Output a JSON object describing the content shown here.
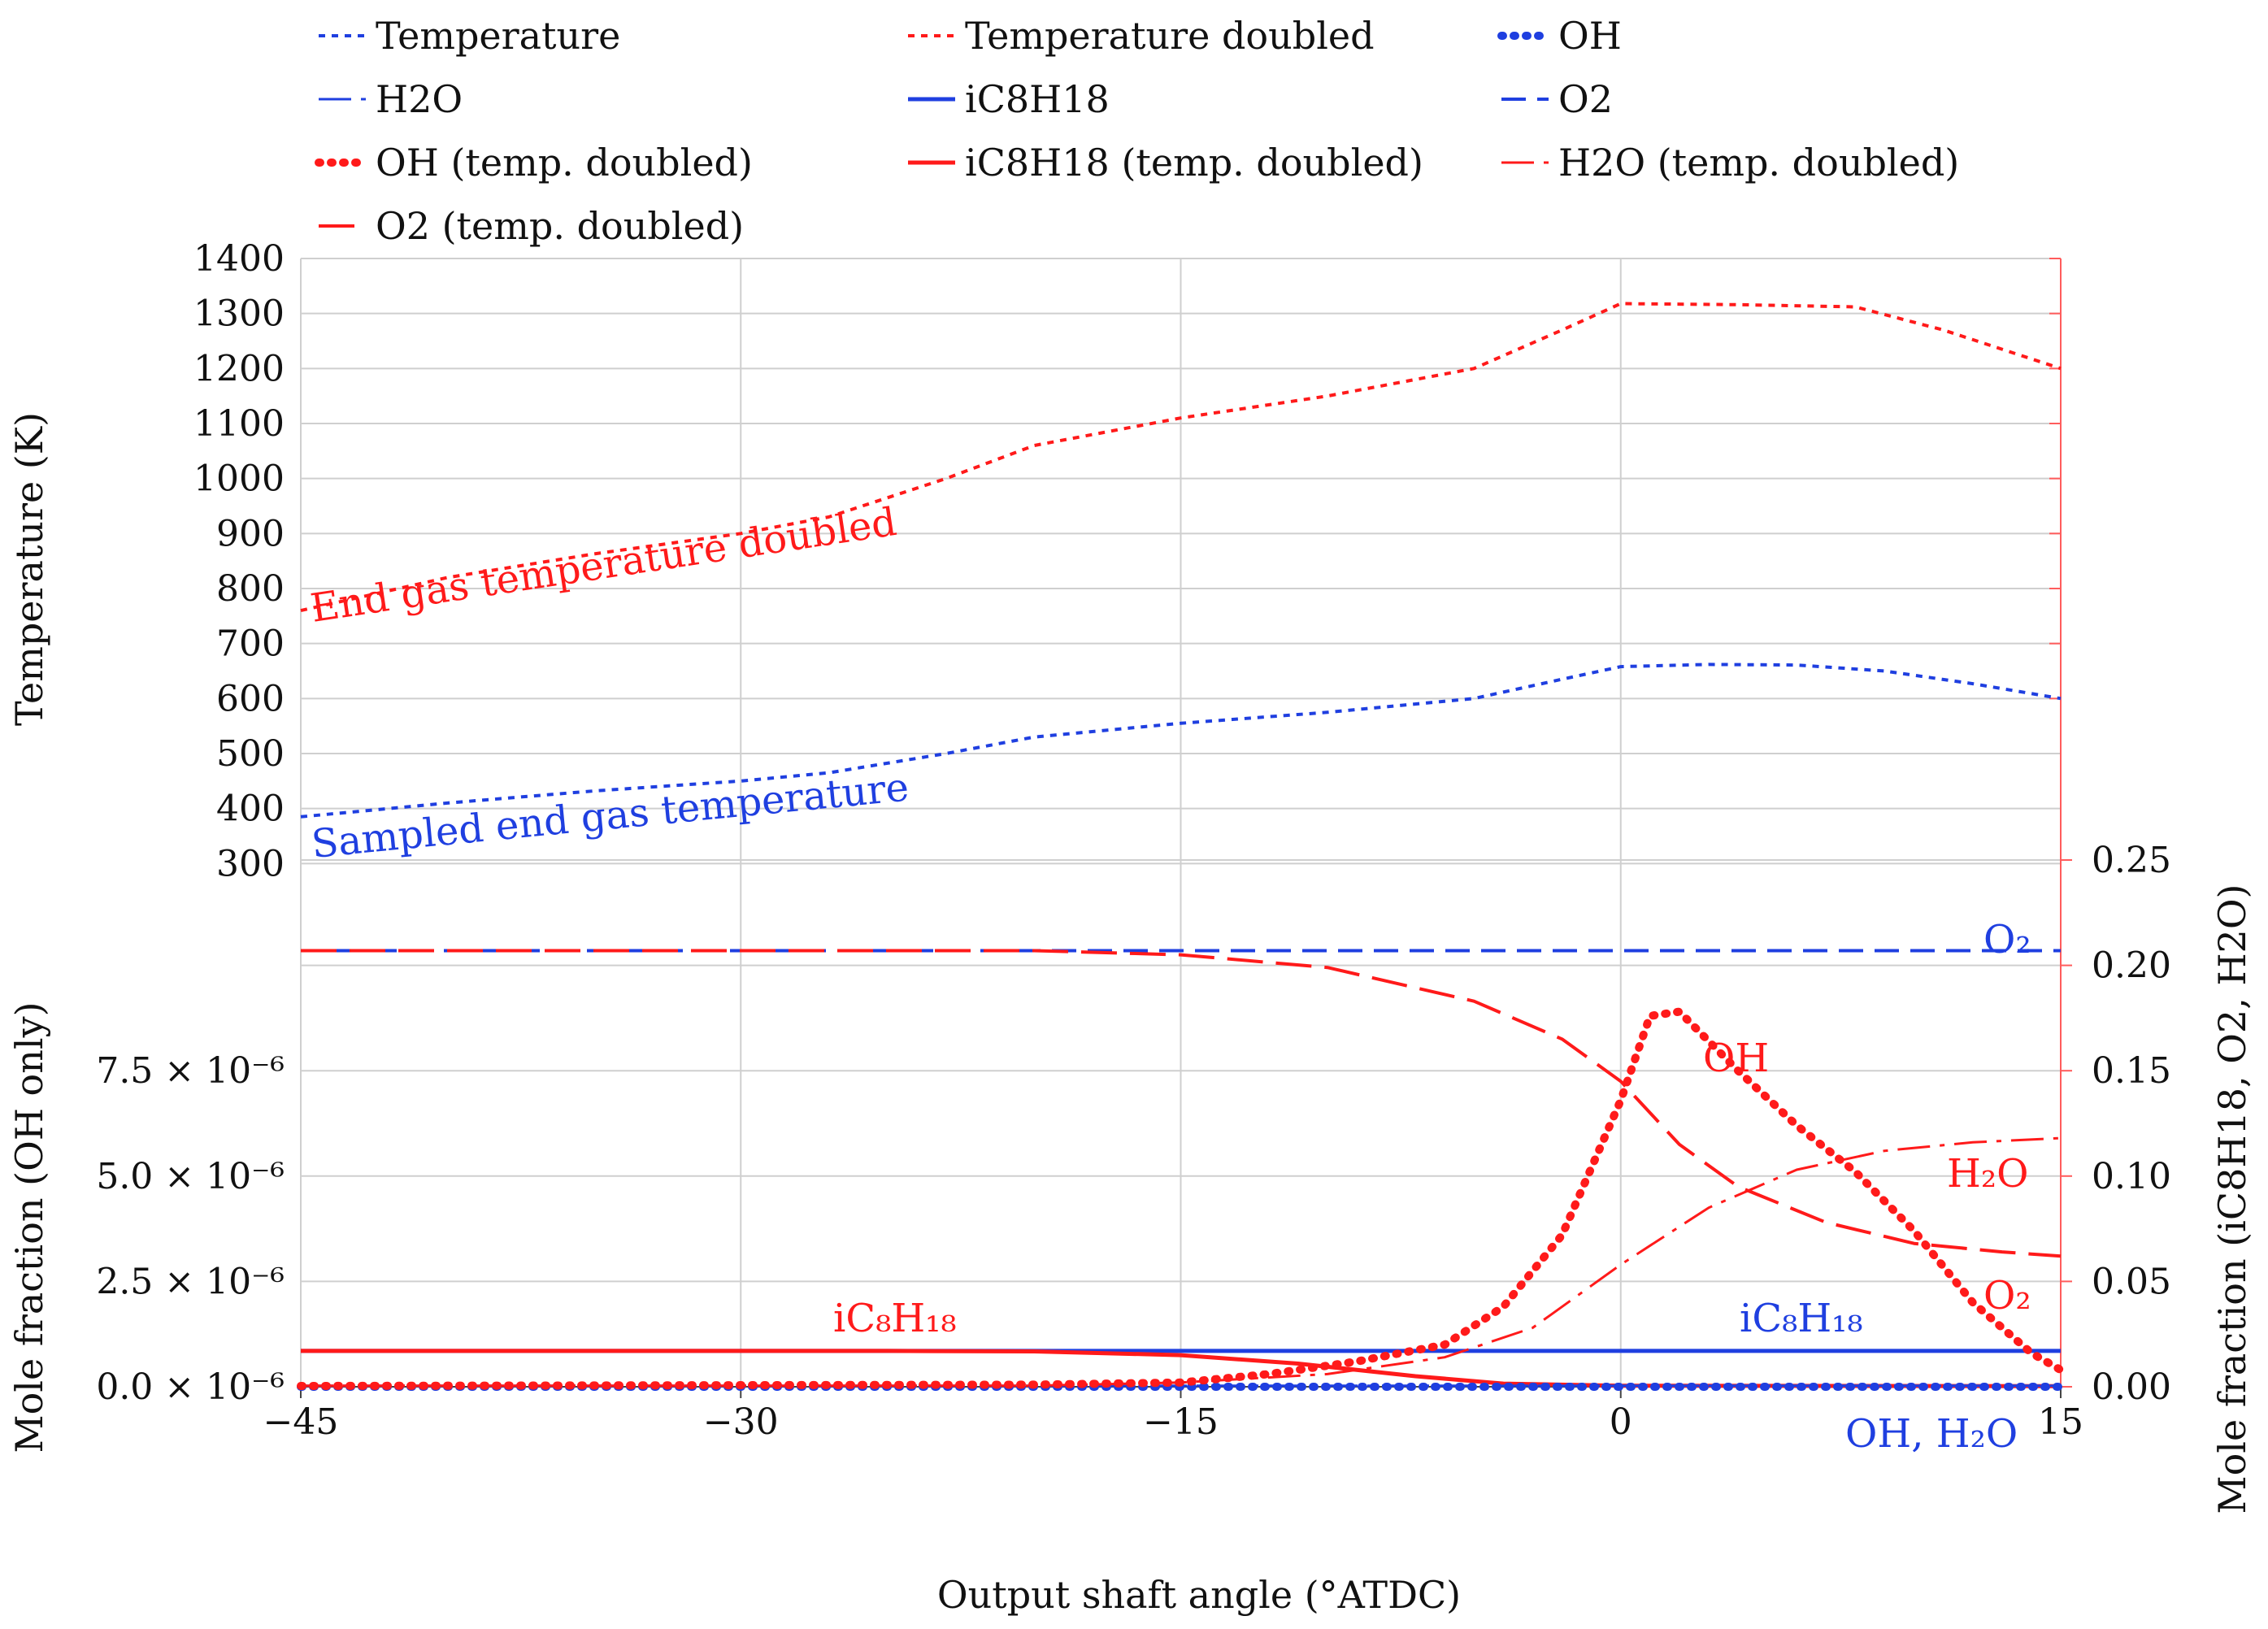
{
  "chart_data": {
    "type": "line",
    "xlabel": "Output shaft angle (°ATDC)",
    "x_ticks": [
      "−45",
      "−30",
      "−15",
      "0",
      "15"
    ],
    "xlim": [
      -45,
      15
    ],
    "top_panel": {
      "ylabel": "Temperature (K)",
      "ylim": [
        200,
        1400
      ],
      "y_ticks": [
        "1400",
        "1300",
        "1200",
        "1100",
        "1000",
        "900",
        "800",
        "700",
        "600",
        "500",
        "400",
        "300"
      ],
      "series": [
        {
          "name": "Temperature",
          "color": "#1f3fe0",
          "style": "dotted-dash",
          "points": [
            [
              -45,
              385
            ],
            [
              -40,
              410
            ],
            [
              -35,
              432
            ],
            [
              -30,
              450
            ],
            [
              -27,
              465
            ],
            [
              -23,
              500
            ],
            [
              -20,
              530
            ],
            [
              -15,
              555
            ],
            [
              -10,
              575
            ],
            [
              -5,
              600
            ],
            [
              -2,
              635
            ],
            [
              0,
              658
            ],
            [
              3,
              662
            ],
            [
              6,
              661
            ],
            [
              9,
              650
            ],
            [
              12,
              627
            ],
            [
              15,
              600
            ]
          ]
        },
        {
          "name": "Temperature doubled",
          "color": "#ff1a1a",
          "style": "dotted-dash",
          "points": [
            [
              -45,
              760
            ],
            [
              -40,
              820
            ],
            [
              -35,
              863
            ],
            [
              -30,
              900
            ],
            [
              -27,
              930
            ],
            [
              -23,
              1000
            ],
            [
              -20,
              1060
            ],
            [
              -15,
              1110
            ],
            [
              -10,
              1150
            ],
            [
              -5,
              1200
            ],
            [
              -2,
              1270
            ],
            [
              0,
              1318
            ],
            [
              4,
              1316
            ],
            [
              8,
              1312
            ],
            [
              11,
              1270
            ],
            [
              15,
              1200
            ]
          ]
        }
      ],
      "annotations": [
        {
          "text": "End gas temperature doubled",
          "color": "#ff1a1a"
        },
        {
          "text": "Sampled end gas temperature",
          "color": "#1f3fe0"
        }
      ]
    },
    "bottom_panel": {
      "ylabel_left": "Mole fraction (OH only)",
      "ylabel_right": "Mole fraction (iC8H18, O2, H2O)",
      "ylim_left": [
        0,
        1e-05
      ],
      "ylim_right": [
        0,
        0.25
      ],
      "y_ticks_left": [
        "7.5 × 10⁻⁶",
        "5.0 × 10⁻⁶",
        "2.5 × 10⁻⁶",
        "0.0 × 10⁻⁶"
      ],
      "y_ticks_right": [
        "0.25",
        "0.20",
        "0.15",
        "0.10",
        "0.05",
        "0.00"
      ],
      "series": [
        {
          "name": "O2",
          "color": "#1f3fe0",
          "style": "dash",
          "axis": "right",
          "points": [
            [
              -45,
              0.207
            ],
            [
              15,
              0.207
            ]
          ]
        },
        {
          "name": "O2 (temp. doubled)",
          "color": "#ff1a1a",
          "style": "longdash",
          "axis": "right",
          "points": [
            [
              -45,
              0.207
            ],
            [
              -20,
              0.207
            ],
            [
              -15,
              0.205
            ],
            [
              -10,
              0.199
            ],
            [
              -5,
              0.183
            ],
            [
              -2,
              0.165
            ],
            [
              0,
              0.145
            ],
            [
              2,
              0.115
            ],
            [
              4,
              0.095
            ],
            [
              7,
              0.078
            ],
            [
              10,
              0.068
            ],
            [
              13,
              0.064
            ],
            [
              15,
              0.062
            ]
          ]
        },
        {
          "name": "iC8H18",
          "color": "#1f3fe0",
          "style": "solid",
          "axis": "right",
          "points": [
            [
              -45,
              0.017
            ],
            [
              15,
              0.017
            ]
          ]
        },
        {
          "name": "iC8H18 (temp. doubled)",
          "color": "#ff1a1a",
          "style": "solid",
          "axis": "right",
          "points": [
            [
              -45,
              0.017
            ],
            [
              -25,
              0.017
            ],
            [
              -20,
              0.0168
            ],
            [
              -15,
              0.015
            ],
            [
              -11,
              0.011
            ],
            [
              -7,
              0.005
            ],
            [
              -4,
              0.0015
            ],
            [
              0,
              0.0005
            ],
            [
              15,
              0.0003
            ]
          ]
        },
        {
          "name": "H2O",
          "color": "#1f3fe0",
          "style": "dashdot",
          "axis": "right",
          "points": [
            [
              -45,
              0.0005
            ],
            [
              15,
              0.0005
            ]
          ]
        },
        {
          "name": "H2O (temp. doubled)",
          "color": "#ff1a1a",
          "style": "dashdot",
          "axis": "right",
          "points": [
            [
              -45,
              0.0005
            ],
            [
              -20,
              0.0005
            ],
            [
              -15,
              0.002
            ],
            [
              -10,
              0.006
            ],
            [
              -6,
              0.014
            ],
            [
              -3,
              0.028
            ],
            [
              0,
              0.058
            ],
            [
              3,
              0.085
            ],
            [
              6,
              0.103
            ],
            [
              9,
              0.112
            ],
            [
              12,
              0.116
            ],
            [
              15,
              0.118
            ]
          ]
        },
        {
          "name": "OH",
          "color": "#1f3fe0",
          "style": "dotted",
          "axis": "left",
          "points": [
            [
              -45,
              0.0
            ],
            [
              15,
              0.0
            ]
          ]
        },
        {
          "name": "OH (temp. doubled)",
          "color": "#ff1a1a",
          "style": "dotted",
          "axis": "left",
          "points": [
            [
              -45,
              2e-08
            ],
            [
              -20,
              5e-08
            ],
            [
              -15,
              1e-07
            ],
            [
              -12,
              3e-07
            ],
            [
              -9,
              6e-07
            ],
            [
              -6,
              1e-06
            ],
            [
              -4,
              1.9e-06
            ],
            [
              -2,
              3.6e-06
            ],
            [
              0,
              6.8e-06
            ],
            [
              1,
              8.8e-06
            ],
            [
              2,
              8.9e-06
            ],
            [
              4,
              7.5e-06
            ],
            [
              6,
              6.2e-06
            ],
            [
              8,
              5.1e-06
            ],
            [
              10,
              3.7e-06
            ],
            [
              12,
              2e-06
            ],
            [
              14,
              8e-07
            ],
            [
              15,
              4e-07
            ]
          ]
        }
      ],
      "annotations": [
        {
          "text": "O₂",
          "color": "#1f3fe0"
        },
        {
          "text": "OH",
          "color": "#ff1a1a"
        },
        {
          "text": "H₂O",
          "color": "#ff1a1a"
        },
        {
          "text": "O₂",
          "color": "#ff1a1a"
        },
        {
          "text": "iC₈H₁₈",
          "color": "#ff1a1a"
        },
        {
          "text": "iC₈H₁₈",
          "color": "#1f3fe0"
        },
        {
          "text": "OH, H₂O",
          "color": "#1f3fe0"
        }
      ]
    },
    "legend": [
      {
        "label": "Temperature",
        "color": "#1f3fe0",
        "style": "dotted-dash"
      },
      {
        "label": "Temperature doubled",
        "color": "#ff1a1a",
        "style": "dotted-dash"
      },
      {
        "label": "OH",
        "color": "#1f3fe0",
        "style": "dotted"
      },
      {
        "label": "H2O",
        "color": "#1f3fe0",
        "style": "dashdot"
      },
      {
        "label": "iC8H18",
        "color": "#1f3fe0",
        "style": "solid"
      },
      {
        "label": "O2",
        "color": "#1f3fe0",
        "style": "dash"
      },
      {
        "label": "OH (temp. doubled)",
        "color": "#ff1a1a",
        "style": "dotted"
      },
      {
        "label": "iC8H18 (temp. doubled)",
        "color": "#ff1a1a",
        "style": "solid"
      },
      {
        "label": "H2O (temp. doubled)",
        "color": "#ff1a1a",
        "style": "dashdot"
      },
      {
        "label": "O2 (temp. doubled)",
        "color": "#ff1a1a",
        "style": "longdash"
      }
    ]
  }
}
